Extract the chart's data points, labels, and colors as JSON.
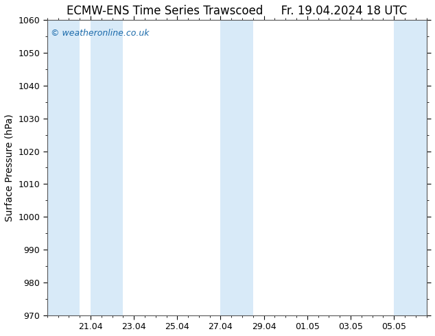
{
  "title_left": "ECMW-ENS Time Series Trawscoed",
  "title_right": "Fr. 19.04.2024 18 UTC",
  "ylabel": "Surface Pressure (hPa)",
  "ylim": [
    970,
    1060
  ],
  "ytick_step": 10,
  "xtick_labels": [
    "21.04",
    "23.04",
    "25.04",
    "27.04",
    "29.04",
    "01.05",
    "03.05",
    "05.05"
  ],
  "xtick_positions": [
    2,
    4,
    6,
    8,
    10,
    12,
    14,
    16
  ],
  "xmin": 0,
  "xmax": 17.5,
  "watermark": "© weatheronline.co.uk",
  "watermark_color": "#1a6aaa",
  "bg_color": "#ffffff",
  "plot_bg_color": "#ffffff",
  "shaded_bands": [
    [
      0,
      1.5
    ],
    [
      2.0,
      3.5
    ],
    [
      8.0,
      9.5
    ],
    [
      16.0,
      17.5
    ]
  ],
  "shade_color": "#d8eaf8",
  "title_fontsize": 12,
  "label_fontsize": 10,
  "tick_fontsize": 9
}
